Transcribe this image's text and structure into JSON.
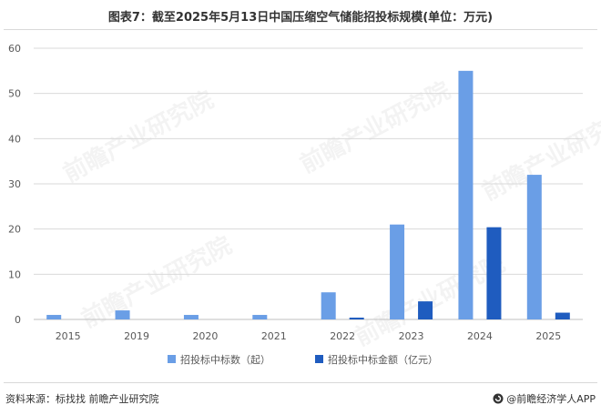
{
  "header": {
    "title": "图表7：截至2025年5月13日中国压缩空气储能招投标规模(单位：万元)"
  },
  "footer": {
    "source": "资料来源：标找找 前瞻产业研究院",
    "brand": "@前瞻经济学人APP"
  },
  "watermark_text": "前瞻产业研究院",
  "colors": {
    "series_1": "#6a9ee6",
    "series_2": "#1f5cbf",
    "grid": "#d9d9d9",
    "axis": "#bfbfbf"
  },
  "chart_data": {
    "type": "bar",
    "title": "图表7：截至2025年5月13日中国压缩空气储能招投标规模(单位：万元)",
    "categories": [
      "2015",
      "2019",
      "2020",
      "2021",
      "2022",
      "2023",
      "2024",
      "2025"
    ],
    "series": [
      {
        "name": "招投标中标数（起）",
        "values": [
          1,
          2,
          1,
          1,
          6,
          21,
          55,
          32
        ]
      },
      {
        "name": "招投标中标金额（亿元）",
        "values": [
          0,
          0,
          0,
          0,
          0.4,
          4,
          20.4,
          1.5
        ]
      }
    ],
    "ylim": [
      0,
      60
    ],
    "yticks": [
      0,
      10,
      20,
      30,
      40,
      50,
      60
    ],
    "grid": true,
    "legend_position": "bottom"
  }
}
